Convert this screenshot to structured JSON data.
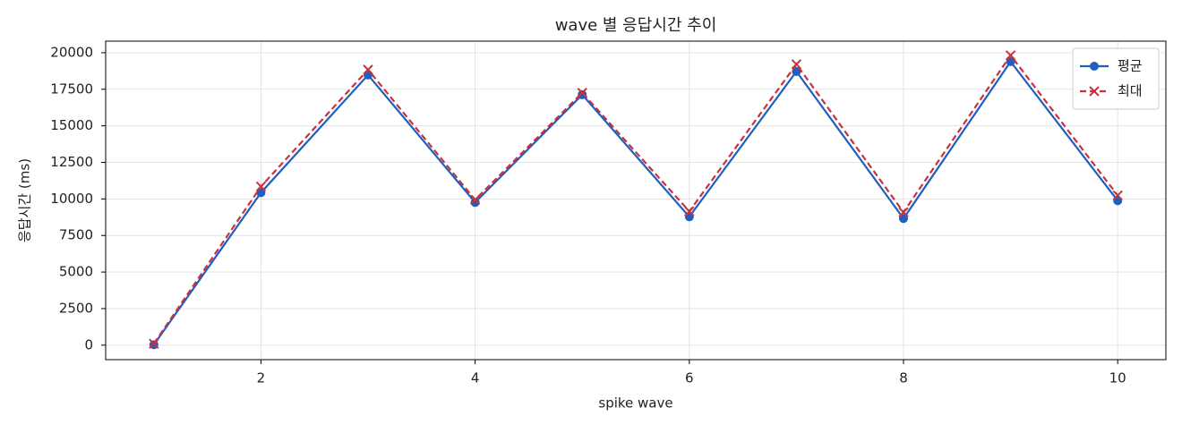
{
  "chart_data": {
    "type": "line",
    "title": "wave 별 응답시간 추이",
    "x_label": "spike wave",
    "y_label": "응답시간 (ms)",
    "x": [
      1,
      2,
      3,
      4,
      5,
      6,
      7,
      8,
      9,
      10
    ],
    "series": [
      {
        "name": "평균",
        "color": "#1f5fbf",
        "linestyle": "solid",
        "marker": "circle",
        "values": [
          30,
          10430,
          18480,
          9760,
          17130,
          8780,
          18720,
          8660,
          19390,
          9880
        ]
      },
      {
        "name": "최대",
        "color": "#c8323c",
        "linestyle": "dashed",
        "marker": "x",
        "values": [
          100,
          10850,
          18840,
          9940,
          17260,
          9150,
          19210,
          9090,
          19820,
          10240
        ]
      }
    ],
    "xlim": [
      0.55,
      10.45
    ],
    "xticks": [
      2,
      4,
      6,
      8,
      10
    ],
    "ylim": [
      -990,
      20790
    ],
    "yticks": [
      0,
      2500,
      5000,
      7500,
      10000,
      12500,
      15000,
      17500,
      20000
    ],
    "grid": true,
    "legend": "upper right"
  }
}
